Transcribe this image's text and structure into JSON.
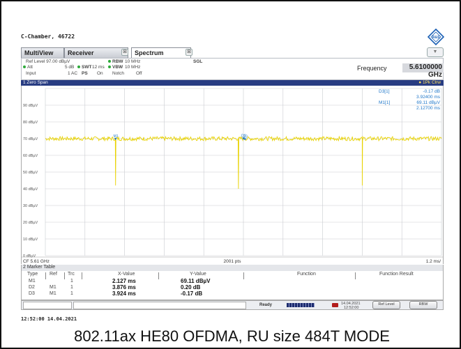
{
  "device_label": "C-Chamber, 46722",
  "tabs": [
    {
      "label": "MultiView"
    },
    {
      "label": "Receiver"
    },
    {
      "label": "Spectrum"
    }
  ],
  "tab_close_glyph": "⊠",
  "settings": {
    "ref_level": "Ref Level  97.00 dBµV",
    "att_label": "Att",
    "att_value": "5 dB",
    "swt_label": "SWT",
    "swt_value": "12 ms",
    "rbw_label": "RBW",
    "rbw_value": "10 MHz",
    "vbw_label": "VBW",
    "vbw_value": "10 MHz",
    "mode": "SGL",
    "input_label": "Input",
    "input_value": "1 AC",
    "ps_label": "PS",
    "ps_value": "On",
    "notch_label": "Notch",
    "notch_value": "Off",
    "frequency_label": "Frequency",
    "frequency_value": "5.6100000 GHz"
  },
  "plot": {
    "title": "1 Zero Span",
    "trace_label": "● 1Pk Clrw",
    "marker_readout": [
      {
        "name": "D3[1]",
        "value": "-0.17 dB"
      },
      {
        "name": "",
        "value": "3.92400 ms"
      },
      {
        "name": "M1[1]",
        "value": "69.11 dBµV"
      },
      {
        "name": "",
        "value": "2.12700 ms"
      }
    ],
    "y_ticks": [
      "90 dBµV",
      "80 dBµV",
      "70 dBµV",
      "60 dBµV",
      "50 dBµV",
      "40 dBµV",
      "30 dBµV",
      "20 dBµV",
      "10 dBµV",
      "0 dBµV"
    ],
    "bottom_left": "CF 5.61 GHz",
    "bottom_center": "2001 pts",
    "bottom_right": "1.2 ms/",
    "marker_tags": [
      "M1",
      "D3",
      "D2"
    ],
    "trace_color": "#e8d200"
  },
  "chart_data": {
    "type": "line",
    "title": "1 Zero Span",
    "xlabel": "",
    "ylabel": "",
    "xlim": [
      0,
      12
    ],
    "ylim": [
      0,
      100
    ],
    "grid": true,
    "series": [
      {
        "name": "1Pk Clrw",
        "baseline": 70,
        "dips": [
          {
            "x": 2.127,
            "depth": 28
          },
          {
            "x": 5.85,
            "depth": 30
          },
          {
            "x": 9.6,
            "depth": 28
          }
        ]
      }
    ],
    "markers": [
      {
        "name": "M1",
        "x": 2.127,
        "y": 69.11
      },
      {
        "name": "D2",
        "x": 6.003,
        "y": 69.31
      },
      {
        "name": "D3",
        "x": 6.051,
        "y": 68.94
      }
    ]
  },
  "marker_table": {
    "title": "2 Marker Table",
    "headers": [
      "Type",
      "Ref",
      "Trc",
      "X-Value",
      "Y-Value",
      "Function",
      "Function Result"
    ],
    "rows": [
      {
        "type": "M1",
        "ref": "",
        "trc": "1",
        "x": "2.127 ms",
        "y": "69.11 dBµV"
      },
      {
        "type": "D2",
        "ref": "M1",
        "trc": "1",
        "x": "3.876 ms",
        "y": "0.20 dB"
      },
      {
        "type": "D3",
        "ref": "M1",
        "trc": "1",
        "x": "3.924 ms",
        "y": "-0.17 dB"
      }
    ]
  },
  "status": {
    "ready": "Ready",
    "date": "14.04.2021",
    "time": "12:52:00",
    "btn_ref_level": "Ref Level",
    "btn_rbw": "RBW"
  },
  "timestamp": "12:52:00  14.04.2021",
  "caption": "802.11ax HE80 OFDMA, RU size 484T MODE"
}
